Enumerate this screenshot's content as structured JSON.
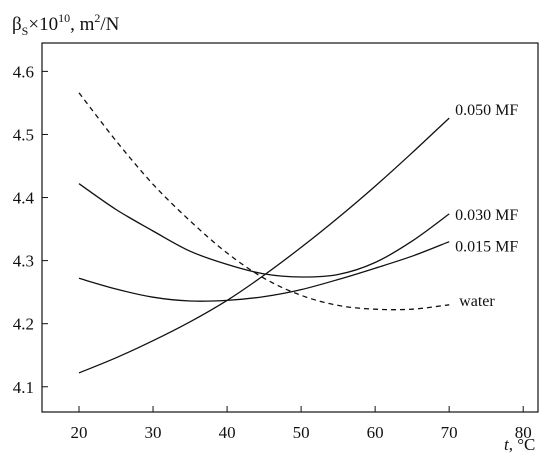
{
  "chart_data": {
    "type": "line",
    "title": "",
    "ylabel": {
      "symbol": "β",
      "subscript": "S",
      "multiplier": "×10",
      "exponent": "10",
      "unit_prefix": ", m",
      "unit_exponent": "2",
      "unit_suffix": "/N"
    },
    "xlabel": {
      "symbol": "t",
      "unit": ", °C"
    },
    "xlim": [
      15,
      82
    ],
    "ylim": [
      4.06,
      4.645
    ],
    "xticks": [
      20,
      30,
      40,
      50,
      60,
      70,
      80
    ],
    "xtick_labels": [
      "20",
      "30",
      "40",
      "50",
      "60",
      "70",
      "80"
    ],
    "yticks": [
      4.1,
      4.2,
      4.3,
      4.4,
      4.5,
      4.6
    ],
    "ytick_labels": [
      "4.1",
      "4.2",
      "4.3",
      "4.4",
      "4.5",
      "4.6"
    ],
    "grid": false,
    "legend": "inline labels at line ends",
    "series": [
      {
        "name": "0.050 MF",
        "style": "solid",
        "x": [
          20,
          25,
          30,
          35,
          40,
          45,
          50,
          55,
          60,
          65,
          70
        ],
        "y": [
          4.122,
          4.146,
          4.173,
          4.203,
          4.237,
          4.277,
          4.321,
          4.368,
          4.418,
          4.471,
          4.526
        ]
      },
      {
        "name": "0.030 MF",
        "style": "solid",
        "x": [
          20,
          25,
          30,
          35,
          40,
          45,
          50,
          55,
          60,
          65,
          70
        ],
        "y": [
          4.422,
          4.381,
          4.347,
          4.315,
          4.294,
          4.279,
          4.274,
          4.278,
          4.297,
          4.331,
          4.374
        ]
      },
      {
        "name": "0.015 MF",
        "style": "solid",
        "x": [
          20,
          25,
          30,
          35,
          40,
          45,
          50,
          55,
          60,
          65,
          70
        ],
        "y": [
          4.272,
          4.255,
          4.242,
          4.236,
          4.237,
          4.243,
          4.254,
          4.27,
          4.288,
          4.307,
          4.33
        ]
      },
      {
        "name": "water",
        "style": "dashed",
        "x": [
          20,
          25,
          30,
          35,
          40,
          45,
          50,
          55,
          60,
          65,
          70
        ],
        "y": [
          4.566,
          4.49,
          4.421,
          4.363,
          4.312,
          4.272,
          4.245,
          4.229,
          4.223,
          4.223,
          4.23
        ]
      }
    ]
  }
}
